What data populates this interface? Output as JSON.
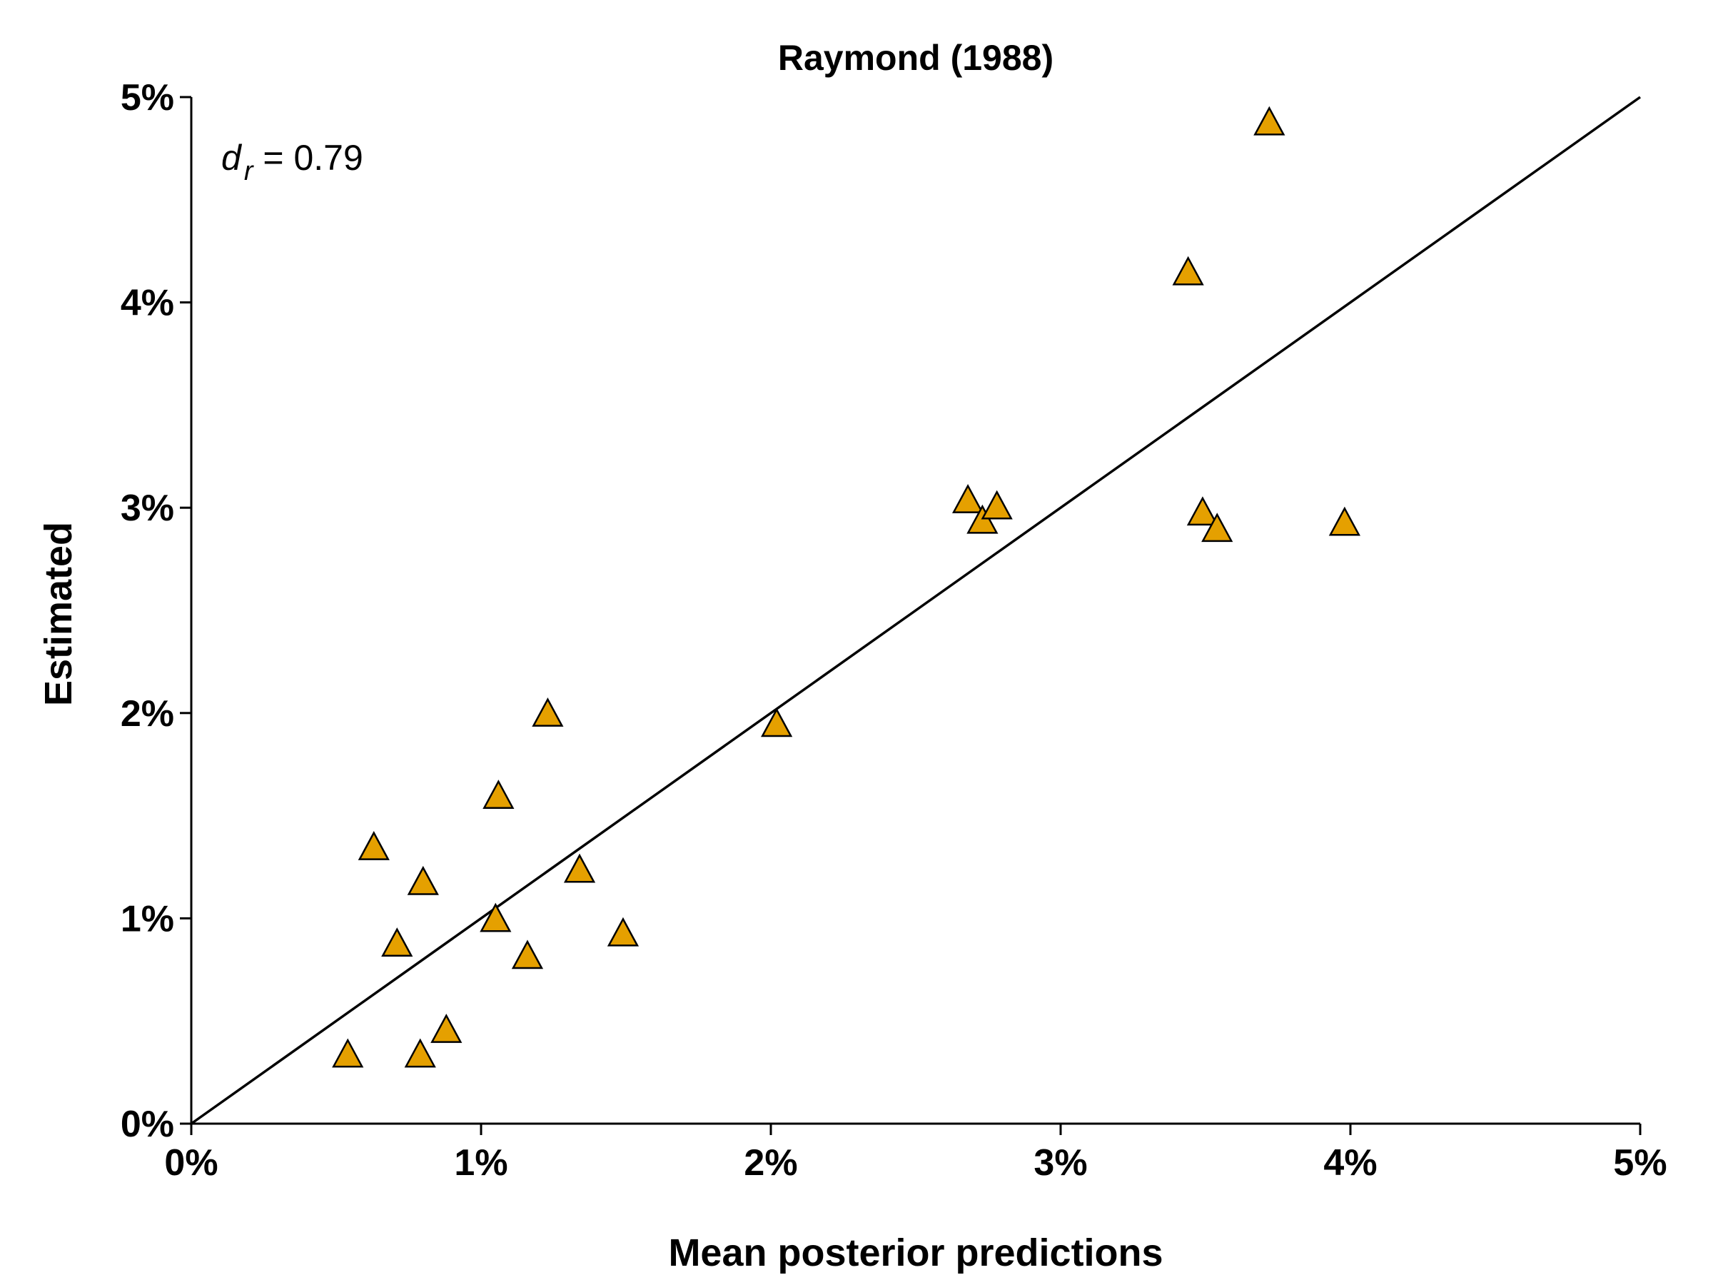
{
  "chart_data": {
    "type": "scatter",
    "title": "Raymond (1988)",
    "xlabel": "Mean posterior predictions",
    "ylabel": "Estimated",
    "xlim": [
      0,
      0.05
    ],
    "ylim": [
      0,
      0.05
    ],
    "x_ticks": [
      0,
      0.01,
      0.02,
      0.03,
      0.04,
      0.05
    ],
    "y_ticks": [
      0,
      0.01,
      0.02,
      0.03,
      0.04,
      0.05
    ],
    "x_tick_labels": [
      "0%",
      "1%",
      "2%",
      "3%",
      "4%",
      "5%"
    ],
    "y_tick_labels": [
      "0%",
      "1%",
      "2%",
      "3%",
      "4%",
      "5%"
    ],
    "reference_line": {
      "from": [
        0,
        0
      ],
      "to": [
        0.05,
        0.05
      ]
    },
    "annotation": {
      "symbol": "d",
      "subscript": "r",
      "equals": " = ",
      "value": "0.79"
    },
    "marker": {
      "shape": "triangle",
      "color": "#E5A000"
    },
    "grid": false,
    "series": [
      {
        "points": [
          {
            "x": 0.0054,
            "y": 0.0033
          },
          {
            "x": 0.0063,
            "y": 0.0134
          },
          {
            "x": 0.0071,
            "y": 0.0087
          },
          {
            "x": 0.0079,
            "y": 0.0033
          },
          {
            "x": 0.008,
            "y": 0.0117
          },
          {
            "x": 0.0088,
            "y": 0.0045
          },
          {
            "x": 0.0105,
            "y": 0.0099
          },
          {
            "x": 0.0106,
            "y": 0.0159
          },
          {
            "x": 0.0116,
            "y": 0.0081
          },
          {
            "x": 0.0123,
            "y": 0.0199
          },
          {
            "x": 0.0134,
            "y": 0.0123
          },
          {
            "x": 0.0149,
            "y": 0.0092
          },
          {
            "x": 0.0202,
            "y": 0.0194
          },
          {
            "x": 0.0268,
            "y": 0.0303
          },
          {
            "x": 0.0273,
            "y": 0.0293
          },
          {
            "x": 0.0278,
            "y": 0.03
          },
          {
            "x": 0.0344,
            "y": 0.0414
          },
          {
            "x": 0.0349,
            "y": 0.0297
          },
          {
            "x": 0.0354,
            "y": 0.0289
          },
          {
            "x": 0.0372,
            "y": 0.0487
          },
          {
            "x": 0.0398,
            "y": 0.0292
          }
        ]
      }
    ]
  }
}
